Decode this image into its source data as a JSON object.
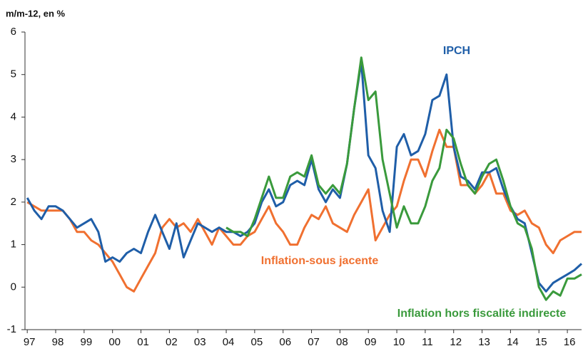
{
  "chart_data": {
    "type": "line",
    "y_axis_label": "m/m-12, en %",
    "x": [
      1997,
      1997.25,
      1997.5,
      1997.75,
      1998,
      1998.25,
      1998.5,
      1998.75,
      1999,
      1999.25,
      1999.5,
      1999.75,
      2000,
      2000.25,
      2000.5,
      2000.75,
      2001,
      2001.25,
      2001.5,
      2001.75,
      2002,
      2002.25,
      2002.5,
      2002.75,
      2003,
      2003.25,
      2003.5,
      2003.75,
      2004,
      2004.25,
      2004.5,
      2004.75,
      2005,
      2005.25,
      2005.5,
      2005.75,
      2006,
      2006.25,
      2006.5,
      2006.75,
      2007,
      2007.25,
      2007.5,
      2007.75,
      2008,
      2008.25,
      2008.5,
      2008.75,
      2009,
      2009.25,
      2009.5,
      2009.75,
      2010,
      2010.25,
      2010.5,
      2010.75,
      2011,
      2011.25,
      2011.5,
      2011.75,
      2012,
      2012.25,
      2012.5,
      2012.75,
      2013,
      2013.25,
      2013.5,
      2013.75,
      2014,
      2014.25,
      2014.5,
      2014.75,
      2015,
      2015.25,
      2015.5,
      2015.75,
      2016,
      2016.25,
      2016.5
    ],
    "series": [
      {
        "name": "IPCH",
        "color": "#1f5ea8",
        "values": [
          2.1,
          1.8,
          1.6,
          1.9,
          1.9,
          1.8,
          1.6,
          1.4,
          1.5,
          1.6,
          1.3,
          0.6,
          0.7,
          0.6,
          0.8,
          0.9,
          0.8,
          1.3,
          1.7,
          1.3,
          0.9,
          1.5,
          0.7,
          1.1,
          1.5,
          1.4,
          1.3,
          1.4,
          1.3,
          1.3,
          1.2,
          1.3,
          1.5,
          2.0,
          2.3,
          1.9,
          2.0,
          2.4,
          2.5,
          2.4,
          3.0,
          2.3,
          2.0,
          2.3,
          2.1,
          2.9,
          4.2,
          5.3,
          3.1,
          2.8,
          1.8,
          1.3,
          3.3,
          3.6,
          3.1,
          3.2,
          3.6,
          4.4,
          4.5,
          5.0,
          3.3,
          2.6,
          2.5,
          2.3,
          2.7,
          2.7,
          2.8,
          2.3,
          1.9,
          1.6,
          1.5,
          0.8,
          0.1,
          -0.1,
          0.1,
          0.2,
          0.3,
          0.4,
          0.55
        ]
      },
      {
        "name": "Inflation-sous jacente",
        "color": "#f07030",
        "values": [
          2.0,
          1.9,
          1.8,
          1.8,
          1.8,
          1.8,
          1.6,
          1.3,
          1.3,
          1.1,
          1.0,
          0.8,
          0.6,
          0.3,
          0.0,
          -0.1,
          0.2,
          0.5,
          0.8,
          1.4,
          1.6,
          1.4,
          1.5,
          1.3,
          1.6,
          1.3,
          1.0,
          1.4,
          1.2,
          1.0,
          1.0,
          1.2,
          1.3,
          1.6,
          1.9,
          1.5,
          1.3,
          1.0,
          1.0,
          1.4,
          1.7,
          1.6,
          1.9,
          1.5,
          1.4,
          1.3,
          1.7,
          2.0,
          2.3,
          1.1,
          1.4,
          1.7,
          1.9,
          2.5,
          3.0,
          3.0,
          2.6,
          3.2,
          3.7,
          3.3,
          3.3,
          2.4,
          2.4,
          2.2,
          2.4,
          2.7,
          2.2,
          2.2,
          1.8,
          1.7,
          1.8,
          1.5,
          1.4,
          1.0,
          0.8,
          1.1,
          1.2,
          1.3,
          1.3
        ]
      },
      {
        "name": "Inflation hors fiscalité indirecte",
        "color": "#3a9a3c",
        "values": [
          null,
          null,
          null,
          null,
          null,
          null,
          null,
          null,
          null,
          null,
          null,
          null,
          null,
          null,
          null,
          null,
          null,
          null,
          null,
          null,
          null,
          null,
          null,
          null,
          null,
          null,
          null,
          null,
          1.4,
          1.3,
          1.3,
          1.2,
          1.6,
          2.1,
          2.6,
          2.1,
          2.1,
          2.6,
          2.7,
          2.6,
          3.1,
          2.4,
          2.2,
          2.4,
          2.2,
          2.9,
          4.2,
          5.4,
          4.4,
          4.6,
          3.0,
          2.2,
          1.4,
          1.9,
          1.5,
          1.5,
          1.9,
          2.5,
          2.8,
          3.7,
          3.5,
          2.9,
          2.4,
          2.2,
          2.6,
          2.9,
          3.0,
          2.5,
          1.9,
          1.5,
          1.4,
          0.9,
          0.0,
          -0.3,
          -0.1,
          -0.2,
          0.2,
          0.2,
          0.3
        ]
      }
    ],
    "xlim": [
      1996.92,
      2016.5
    ],
    "xticks": [
      {
        "value": 1997,
        "label": "97"
      },
      {
        "value": 1998,
        "label": "98"
      },
      {
        "value": 1999,
        "label": "99"
      },
      {
        "value": 2000,
        "label": "00"
      },
      {
        "value": 2001,
        "label": "01"
      },
      {
        "value": 2002,
        "label": "02"
      },
      {
        "value": 2003,
        "label": "03"
      },
      {
        "value": 2004,
        "label": "04"
      },
      {
        "value": 2005,
        "label": "05"
      },
      {
        "value": 2006,
        "label": "06"
      },
      {
        "value": 2007,
        "label": "07"
      },
      {
        "value": 2008,
        "label": "08"
      },
      {
        "value": 2009,
        "label": "09"
      },
      {
        "value": 2010,
        "label": "10"
      },
      {
        "value": 2011,
        "label": "11"
      },
      {
        "value": 2012,
        "label": "12"
      },
      {
        "value": 2013,
        "label": "13"
      },
      {
        "value": 2014,
        "label": "14"
      },
      {
        "value": 2015,
        "label": "15"
      },
      {
        "value": 2016,
        "label": "16"
      }
    ],
    "ylim": [
      -1,
      6
    ],
    "yticks": [
      -1,
      0,
      1,
      2,
      3,
      4,
      5,
      6
    ],
    "grid": false,
    "legend": "inline"
  }
}
